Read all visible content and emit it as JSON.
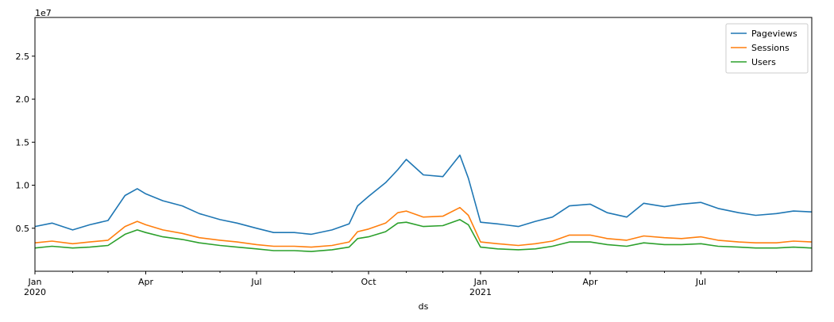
{
  "chart_data": {
    "type": "line",
    "title": "",
    "xlabel": "ds",
    "ylabel": "",
    "y_offset_label": "1e7",
    "y_scale": 10000000,
    "x_range": [
      "2020-01-01",
      "2021-09-30"
    ],
    "ylim": [
      0,
      29500000
    ],
    "grid": false,
    "legend_position": "top-right",
    "x_tick_labels": [
      {
        "date": "2020-01-01",
        "label": "Jan",
        "sublabel": "2020"
      },
      {
        "date": "2020-04-01",
        "label": "Apr",
        "sublabel": ""
      },
      {
        "date": "2020-07-01",
        "label": "Jul",
        "sublabel": ""
      },
      {
        "date": "2020-10-01",
        "label": "Oct",
        "sublabel": ""
      },
      {
        "date": "2021-01-01",
        "label": "Jan",
        "sublabel": "2021"
      },
      {
        "date": "2021-04-01",
        "label": "Apr",
        "sublabel": ""
      },
      {
        "date": "2021-07-01",
        "label": "Jul",
        "sublabel": ""
      }
    ],
    "y_ticks": [
      {
        "value": 5000000,
        "label": "0.5"
      },
      {
        "value": 10000000,
        "label": "1.0"
      },
      {
        "value": 15000000,
        "label": "1.5"
      },
      {
        "value": 20000000,
        "label": "2.0"
      },
      {
        "value": 25000000,
        "label": "2.5"
      }
    ],
    "series": [
      {
        "name": "Pageviews",
        "color": "#1f77b4",
        "x": [
          "2020-01-01",
          "2020-01-15",
          "2020-02-01",
          "2020-02-15",
          "2020-03-01",
          "2020-03-15",
          "2020-03-25",
          "2020-04-01",
          "2020-04-15",
          "2020-05-01",
          "2020-05-15",
          "2020-06-01",
          "2020-06-15",
          "2020-07-01",
          "2020-07-15",
          "2020-08-01",
          "2020-08-15",
          "2020-09-01",
          "2020-09-15",
          "2020-09-22",
          "2020-10-01",
          "2020-10-15",
          "2020-10-25",
          "2020-11-01",
          "2020-11-15",
          "2020-12-01",
          "2020-12-15",
          "2020-12-22",
          "2021-01-01",
          "2021-01-15",
          "2021-02-01",
          "2021-02-15",
          "2021-03-01",
          "2021-03-15",
          "2021-04-01",
          "2021-04-15",
          "2021-05-01",
          "2021-05-15",
          "2021-06-01",
          "2021-06-15",
          "2021-07-01",
          "2021-07-15",
          "2021-08-01",
          "2021-08-15",
          "2021-09-01",
          "2021-09-15",
          "2021-09-30"
        ],
        "values": [
          5200000,
          5600000,
          4800000,
          5400000,
          5900000,
          8800000,
          9600000,
          9000000,
          8200000,
          7600000,
          6700000,
          6000000,
          5600000,
          5000000,
          4500000,
          4500000,
          4300000,
          4800000,
          5500000,
          7600000,
          8700000,
          10300000,
          11800000,
          13000000,
          11200000,
          11000000,
          13500000,
          10800000,
          5700000,
          5500000,
          5200000,
          5800000,
          6300000,
          7600000,
          7800000,
          6800000,
          6300000,
          7900000,
          7500000,
          7800000,
          8000000,
          7300000,
          6800000,
          6500000,
          6700000,
          7000000,
          6900000
        ]
      },
      {
        "name": "Sessions",
        "color": "#ff7f0e",
        "x": [
          "2020-01-01",
          "2020-01-15",
          "2020-02-01",
          "2020-02-15",
          "2020-03-01",
          "2020-03-15",
          "2020-03-25",
          "2020-04-01",
          "2020-04-15",
          "2020-05-01",
          "2020-05-15",
          "2020-06-01",
          "2020-06-15",
          "2020-07-01",
          "2020-07-15",
          "2020-08-01",
          "2020-08-15",
          "2020-09-01",
          "2020-09-15",
          "2020-09-22",
          "2020-10-01",
          "2020-10-15",
          "2020-10-25",
          "2020-11-01",
          "2020-11-15",
          "2020-12-01",
          "2020-12-15",
          "2020-12-22",
          "2021-01-01",
          "2021-01-15",
          "2021-02-01",
          "2021-02-15",
          "2021-03-01",
          "2021-03-15",
          "2021-04-01",
          "2021-04-15",
          "2021-05-01",
          "2021-05-15",
          "2021-06-01",
          "2021-06-15",
          "2021-07-01",
          "2021-07-15",
          "2021-08-01",
          "2021-08-15",
          "2021-09-01",
          "2021-09-15",
          "2021-09-30"
        ],
        "values": [
          3300000,
          3500000,
          3200000,
          3400000,
          3600000,
          5200000,
          5800000,
          5400000,
          4800000,
          4400000,
          3900000,
          3600000,
          3400000,
          3100000,
          2900000,
          2900000,
          2800000,
          3000000,
          3400000,
          4600000,
          4900000,
          5600000,
          6800000,
          7000000,
          6300000,
          6400000,
          7400000,
          6500000,
          3400000,
          3200000,
          3000000,
          3200000,
          3500000,
          4200000,
          4200000,
          3800000,
          3600000,
          4100000,
          3900000,
          3800000,
          4000000,
          3600000,
          3400000,
          3300000,
          3300000,
          3500000,
          3400000
        ]
      },
      {
        "name": "Users",
        "color": "#2ca02c",
        "x": [
          "2020-01-01",
          "2020-01-15",
          "2020-02-01",
          "2020-02-15",
          "2020-03-01",
          "2020-03-15",
          "2020-03-25",
          "2020-04-01",
          "2020-04-15",
          "2020-05-01",
          "2020-05-15",
          "2020-06-01",
          "2020-06-15",
          "2020-07-01",
          "2020-07-15",
          "2020-08-01",
          "2020-08-15",
          "2020-09-01",
          "2020-09-15",
          "2020-09-22",
          "2020-10-01",
          "2020-10-15",
          "2020-10-25",
          "2020-11-01",
          "2020-11-15",
          "2020-12-01",
          "2020-12-15",
          "2020-12-22",
          "2021-01-01",
          "2021-01-15",
          "2021-02-01",
          "2021-02-15",
          "2021-03-01",
          "2021-03-15",
          "2021-04-01",
          "2021-04-15",
          "2021-05-01",
          "2021-05-15",
          "2021-06-01",
          "2021-06-15",
          "2021-07-01",
          "2021-07-15",
          "2021-08-01",
          "2021-08-15",
          "2021-09-01",
          "2021-09-15",
          "2021-09-30"
        ],
        "values": [
          2700000,
          2900000,
          2700000,
          2800000,
          3000000,
          4300000,
          4800000,
          4500000,
          4000000,
          3700000,
          3300000,
          3000000,
          2800000,
          2600000,
          2400000,
          2400000,
          2300000,
          2500000,
          2800000,
          3800000,
          4000000,
          4600000,
          5600000,
          5700000,
          5200000,
          5300000,
          6000000,
          5400000,
          2800000,
          2600000,
          2500000,
          2600000,
          2900000,
          3400000,
          3400000,
          3100000,
          2900000,
          3300000,
          3100000,
          3100000,
          3200000,
          2900000,
          2800000,
          2700000,
          2700000,
          2800000,
          2700000
        ]
      }
    ]
  }
}
